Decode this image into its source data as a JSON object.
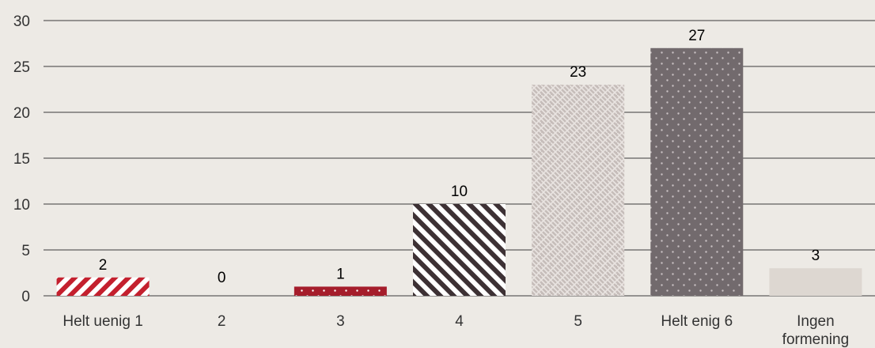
{
  "chart_data": {
    "type": "bar",
    "title": "",
    "xlabel": "",
    "ylabel": "",
    "ylim": [
      0,
      30
    ],
    "yticks": [
      0,
      5,
      10,
      15,
      20,
      25,
      30
    ],
    "grid": true,
    "legend": "none",
    "categories": [
      [
        "Helt uenig 1"
      ],
      [
        "2"
      ],
      [
        "3"
      ],
      [
        "4"
      ],
      [
        "5"
      ],
      [
        "Helt enig 6"
      ],
      [
        "Ingen",
        "formening"
      ]
    ],
    "values": [
      2,
      0,
      1,
      10,
      23,
      27,
      3
    ],
    "bar_styles": [
      {
        "pattern": "diagonal-stripes",
        "fg": "#c4202e",
        "bg": "#ffffff"
      },
      {
        "pattern": "none",
        "fg": "#c4202e",
        "bg": "#ffffff"
      },
      {
        "pattern": "dots",
        "fg": "#ffffff",
        "bg": "#a51d2b"
      },
      {
        "pattern": "diagonal-stripes-reverse",
        "fg": "#ffffff",
        "bg": "#3d3134"
      },
      {
        "pattern": "weave",
        "fg": "#e9e4e1",
        "bg": "#c6bdba"
      },
      {
        "pattern": "dots",
        "fg": "#c9c1c3",
        "bg": "#726a6d"
      },
      {
        "pattern": "solid",
        "fg": "#ddd7d1",
        "bg": "#ddd7d1"
      }
    ],
    "colors": {
      "background": "#edeae5",
      "grid": "#3a3a3a",
      "text": "#333333",
      "label": "#000000"
    }
  }
}
